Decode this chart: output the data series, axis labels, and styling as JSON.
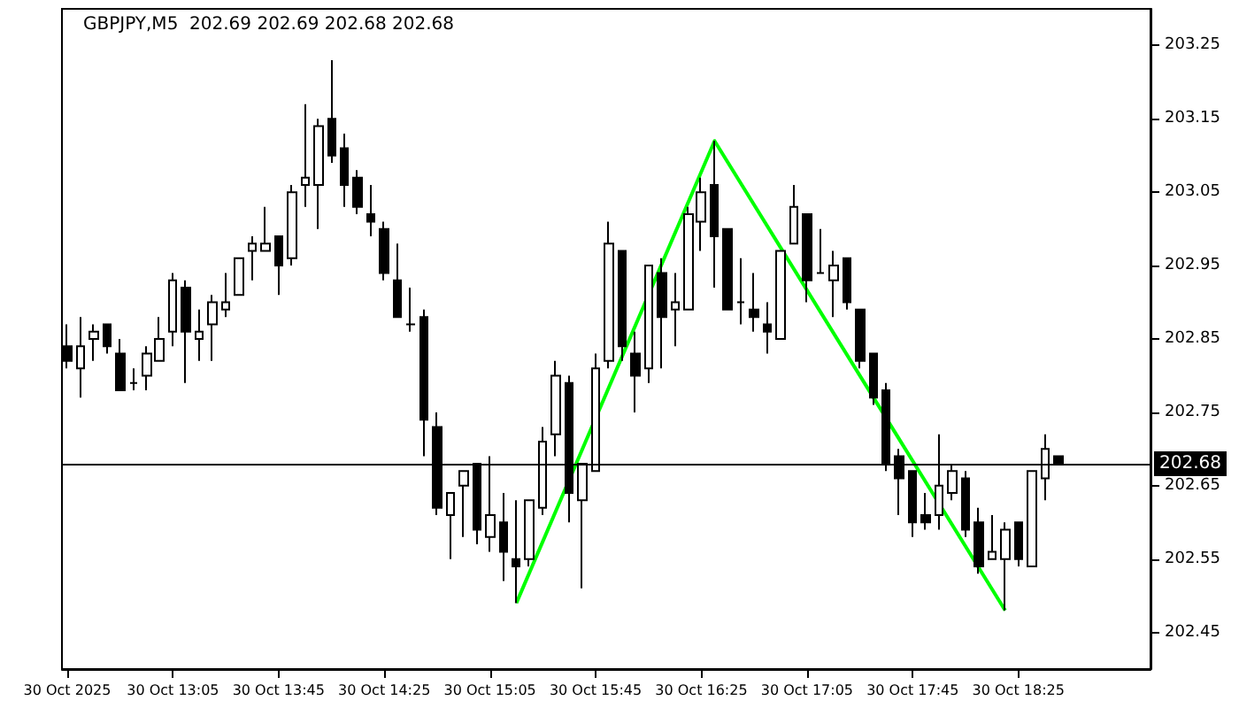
{
  "chart_data": {
    "type": "candlestick",
    "title": "GBPJPY,M5  202.69 202.69 202.68 202.68",
    "xlim": [
      "2025-10-30T12:23",
      "2025-10-30T19:15"
    ],
    "xticks": [
      {
        "value": "2025-10-30T12:25",
        "label": "30 Oct 2025"
      },
      {
        "value": "2025-10-30T13:05",
        "label": "30 Oct 13:05"
      },
      {
        "value": "2025-10-30T13:45",
        "label": "30 Oct 13:45"
      },
      {
        "value": "2025-10-30T14:25",
        "label": "30 Oct 14:25"
      },
      {
        "value": "2025-10-30T15:05",
        "label": "30 Oct 15:05"
      },
      {
        "value": "2025-10-30T15:45",
        "label": "30 Oct 15:45"
      },
      {
        "value": "2025-10-30T16:25",
        "label": "30 Oct 16:25"
      },
      {
        "value": "2025-10-30T17:05",
        "label": "30 Oct 17:05"
      },
      {
        "value": "2025-10-30T17:45",
        "label": "30 Oct 17:45"
      },
      {
        "value": "2025-10-30T18:25",
        "label": "30 Oct 18:25"
      }
    ],
    "ylim": [
      202.4,
      203.3
    ],
    "yticks": [
      202.45,
      202.55,
      202.65,
      202.75,
      202.85,
      202.95,
      203.05,
      203.15,
      203.25
    ],
    "grid": false,
    "ref_lines": [
      {
        "axis": "y",
        "value": 202.68,
        "label": "202.68",
        "color": "#000000"
      }
    ],
    "series": [
      {
        "color": "#000000",
        "x": [
          "2025-10-30T12:25",
          "2025-10-30T12:30",
          "2025-10-30T12:35",
          "2025-10-30T12:40",
          "2025-10-30T12:45",
          "2025-10-30T12:50",
          "2025-10-30T12:55",
          "2025-10-30T13:00",
          "2025-10-30T13:05",
          "2025-10-30T13:10",
          "2025-10-30T13:15",
          "2025-10-30T13:20",
          "2025-10-30T13:25",
          "2025-10-30T13:30",
          "2025-10-30T13:35",
          "2025-10-30T13:40",
          "2025-10-30T13:45",
          "2025-10-30T13:50",
          "2025-10-30T13:55",
          "2025-10-30T14:00",
          "2025-10-30T14:05",
          "2025-10-30T14:10",
          "2025-10-30T14:15",
          "2025-10-30T14:20",
          "2025-10-30T14:25",
          "2025-10-30T14:30",
          "2025-10-30T14:35",
          "2025-10-30T14:40",
          "2025-10-30T14:45",
          "2025-10-30T14:50",
          "2025-10-30T14:55",
          "2025-10-30T15:00",
          "2025-10-30T15:05",
          "2025-10-30T15:10",
          "2025-10-30T15:15",
          "2025-10-30T15:20",
          "2025-10-30T15:25",
          "2025-10-30T15:30",
          "2025-10-30T15:35",
          "2025-10-30T15:40",
          "2025-10-30T15:45",
          "2025-10-30T15:50",
          "2025-10-30T15:55",
          "2025-10-30T16:00",
          "2025-10-30T16:05",
          "2025-10-30T16:10",
          "2025-10-30T16:15",
          "2025-10-30T16:20",
          "2025-10-30T16:25",
          "2025-10-30T16:30",
          "2025-10-30T16:35",
          "2025-10-30T16:40",
          "2025-10-30T16:45",
          "2025-10-30T16:50",
          "2025-10-30T16:55",
          "2025-10-30T17:00",
          "2025-10-30T17:05",
          "2025-10-30T17:10",
          "2025-10-30T17:15",
          "2025-10-30T17:20",
          "2025-10-30T17:25",
          "2025-10-30T17:30",
          "2025-10-30T17:35",
          "2025-10-30T17:40",
          "2025-10-30T17:45",
          "2025-10-30T17:50",
          "2025-10-30T17:55",
          "2025-10-30T18:00",
          "2025-10-30T18:05",
          "2025-10-30T18:10",
          "2025-10-30T18:15",
          "2025-10-30T18:20",
          "2025-10-30T18:25",
          "2025-10-30T18:30",
          "2025-10-30T18:35",
          "2025-10-30T18:40"
        ],
        "ohlc": [
          [
            202.84,
            202.87,
            202.81,
            202.82
          ],
          [
            202.81,
            202.88,
            202.77,
            202.84
          ],
          [
            202.85,
            202.87,
            202.82,
            202.86
          ],
          [
            202.87,
            202.87,
            202.83,
            202.84
          ],
          [
            202.83,
            202.85,
            202.78,
            202.78
          ],
          [
            202.79,
            202.81,
            202.78,
            202.79
          ],
          [
            202.8,
            202.84,
            202.78,
            202.83
          ],
          [
            202.82,
            202.88,
            202.82,
            202.85
          ],
          [
            202.86,
            202.94,
            202.84,
            202.93
          ],
          [
            202.92,
            202.93,
            202.79,
            202.86
          ],
          [
            202.85,
            202.89,
            202.82,
            202.86
          ],
          [
            202.87,
            202.91,
            202.82,
            202.9
          ],
          [
            202.89,
            202.94,
            202.88,
            202.9
          ],
          [
            202.91,
            202.96,
            202.91,
            202.96
          ],
          [
            202.97,
            202.99,
            202.93,
            202.98
          ],
          [
            202.97,
            203.03,
            202.97,
            202.98
          ],
          [
            202.99,
            202.99,
            202.91,
            202.95
          ],
          [
            202.96,
            203.06,
            202.95,
            203.05
          ],
          [
            203.06,
            203.17,
            203.03,
            203.07
          ],
          [
            203.06,
            203.15,
            203.0,
            203.14
          ],
          [
            203.15,
            203.23,
            203.09,
            203.1
          ],
          [
            203.11,
            203.13,
            203.03,
            203.06
          ],
          [
            203.07,
            203.08,
            203.02,
            203.03
          ],
          [
            203.02,
            203.06,
            202.99,
            203.01
          ],
          [
            203.0,
            203.01,
            202.93,
            202.94
          ],
          [
            202.93,
            202.98,
            202.88,
            202.88
          ],
          [
            202.87,
            202.92,
            202.86,
            202.87
          ],
          [
            202.88,
            202.89,
            202.69,
            202.74
          ],
          [
            202.73,
            202.75,
            202.61,
            202.62
          ],
          [
            202.61,
            202.64,
            202.55,
            202.64
          ],
          [
            202.65,
            202.67,
            202.58,
            202.67
          ],
          [
            202.68,
            202.68,
            202.57,
            202.59
          ],
          [
            202.58,
            202.69,
            202.56,
            202.61
          ],
          [
            202.6,
            202.64,
            202.52,
            202.56
          ],
          [
            202.55,
            202.63,
            202.49,
            202.54
          ],
          [
            202.55,
            202.63,
            202.54,
            202.63
          ],
          [
            202.62,
            202.73,
            202.61,
            202.71
          ],
          [
            202.72,
            202.82,
            202.69,
            202.8
          ],
          [
            202.79,
            202.8,
            202.6,
            202.64
          ],
          [
            202.63,
            202.68,
            202.51,
            202.68
          ],
          [
            202.67,
            202.83,
            202.67,
            202.81
          ],
          [
            202.82,
            203.01,
            202.81,
            202.98
          ],
          [
            202.97,
            202.97,
            202.82,
            202.84
          ],
          [
            202.83,
            202.86,
            202.75,
            202.8
          ],
          [
            202.81,
            202.95,
            202.79,
            202.95
          ],
          [
            202.94,
            202.96,
            202.81,
            202.88
          ],
          [
            202.89,
            202.94,
            202.84,
            202.9
          ],
          [
            202.89,
            203.03,
            202.89,
            203.02
          ],
          [
            203.01,
            203.07,
            202.97,
            203.05
          ],
          [
            203.06,
            203.12,
            202.92,
            202.99
          ],
          [
            203.0,
            203.0,
            202.89,
            202.89
          ],
          [
            202.9,
            202.96,
            202.87,
            202.9
          ],
          [
            202.89,
            202.94,
            202.86,
            202.88
          ],
          [
            202.87,
            202.9,
            202.83,
            202.86
          ],
          [
            202.85,
            202.97,
            202.85,
            202.97
          ],
          [
            202.98,
            203.06,
            202.98,
            203.03
          ],
          [
            203.02,
            203.02,
            202.9,
            202.93
          ],
          [
            202.94,
            203.0,
            202.94,
            202.94
          ],
          [
            202.93,
            202.97,
            202.88,
            202.95
          ],
          [
            202.96,
            202.96,
            202.89,
            202.9
          ],
          [
            202.89,
            202.89,
            202.81,
            202.82
          ],
          [
            202.83,
            202.83,
            202.76,
            202.77
          ],
          [
            202.78,
            202.79,
            202.67,
            202.68
          ],
          [
            202.69,
            202.7,
            202.61,
            202.66
          ],
          [
            202.67,
            202.67,
            202.58,
            202.6
          ],
          [
            202.61,
            202.64,
            202.59,
            202.6
          ],
          [
            202.61,
            202.72,
            202.59,
            202.65
          ],
          [
            202.64,
            202.68,
            202.63,
            202.67
          ],
          [
            202.66,
            202.67,
            202.58,
            202.59
          ],
          [
            202.6,
            202.62,
            202.53,
            202.54
          ],
          [
            202.55,
            202.61,
            202.55,
            202.56
          ],
          [
            202.55,
            202.6,
            202.48,
            202.59
          ],
          [
            202.6,
            202.6,
            202.54,
            202.55
          ],
          [
            202.54,
            202.67,
            202.54,
            202.67
          ],
          [
            202.66,
            202.72,
            202.63,
            202.7
          ],
          [
            202.69,
            202.69,
            202.68,
            202.68
          ]
        ]
      },
      {
        "type": "line",
        "color": "#00ff00",
        "x": [
          "2025-10-30T15:15",
          "2025-10-30T16:30",
          "2025-10-30T18:20"
        ],
        "values": [
          202.49,
          203.12,
          202.48
        ]
      }
    ]
  }
}
